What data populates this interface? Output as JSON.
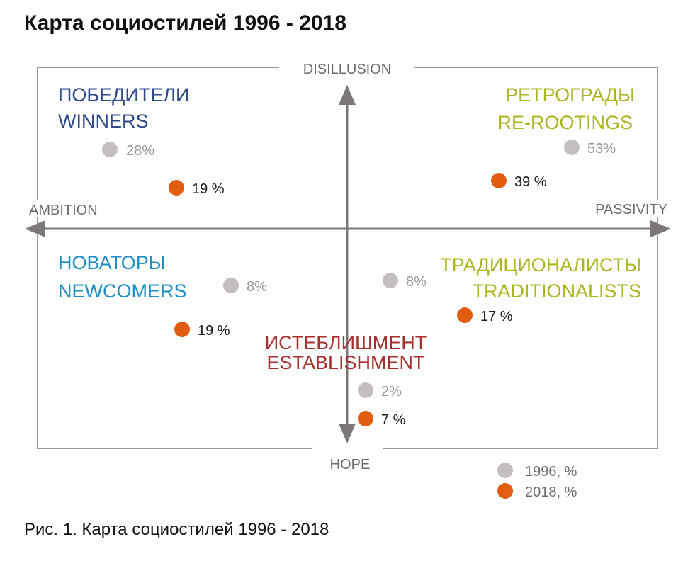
{
  "title": "Карта социостилей 1996 - 2018",
  "caption": "Рис. 1. Карта социостилей 1996 - 2018",
  "axes": {
    "top": "DISILLUSION",
    "bottom": "HOPE",
    "left": "AMBITION",
    "right": "PASSIVITY"
  },
  "groups": [
    {
      "id": "winners",
      "name_ru": "ПОБЕДИТЕЛИ",
      "name_en": "WINNERS",
      "color": "#2e4a8c",
      "value_1996": "28%",
      "value_2018": "19 %"
    },
    {
      "id": "rerootings",
      "name_ru": "РЕТРОГРАДЫ",
      "name_en": "RE-ROOTINGS",
      "color": "#aab520",
      "value_1996": "53%",
      "value_2018": "39 %"
    },
    {
      "id": "newcomers",
      "name_ru": "НОВАТОРЫ",
      "name_en": "NEWCOMERS",
      "color": "#1e8ec4",
      "value_1996": "8%",
      "value_2018": "19 %"
    },
    {
      "id": "traditionalists",
      "name_ru": "ТРАДИЦИОНАЛИСТЫ",
      "name_en": "TRADITIONALISTS",
      "color": "#aab520",
      "value_1996": "8%",
      "value_2018": "17 %"
    },
    {
      "id": "establishment",
      "name_ru": "ИСТЕБЛИШМЕНТ",
      "name_en": "ESTABLISHMENT",
      "color": "#a5302e",
      "value_1996": "2%",
      "value_2018": "7 %"
    }
  ],
  "legend": [
    {
      "label": "1996, %",
      "color": "#c4bebe"
    },
    {
      "label": "2018, %",
      "color": "#e35d10"
    }
  ],
  "colors": {
    "frame": "#9a9696",
    "axis": "#7c7878",
    "axis_label": "#6e6a6a",
    "dot_1996": "#c4bebe",
    "dot_2018": "#e35d10",
    "text_1996": "#9c9696",
    "text_2018": "#1a1a1a"
  }
}
